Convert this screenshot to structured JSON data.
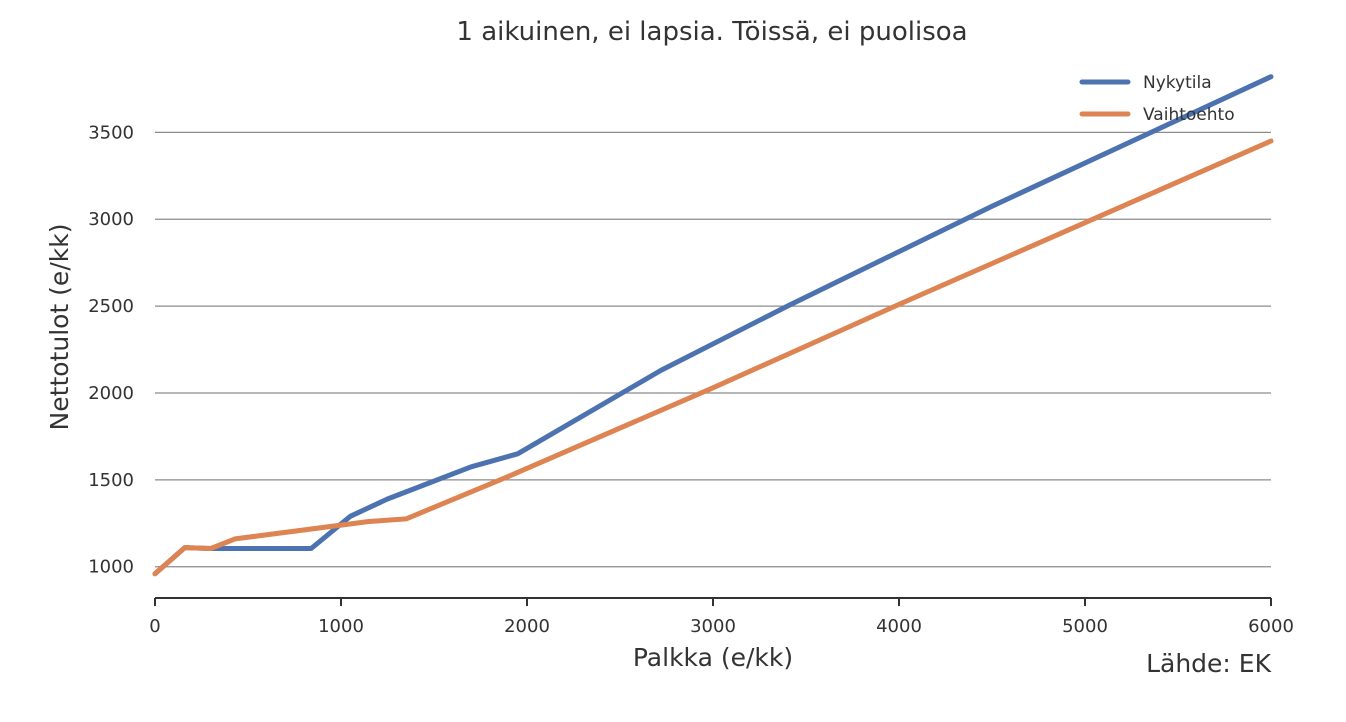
{
  "chart_data": {
    "type": "line",
    "title": "1 aikuinen, ei lapsia. Töissä, ei puolisoa",
    "xlabel": "Palkka (e/kk)",
    "ylabel": "Nettotulot (e/kk)",
    "source": "Lähde: EK",
    "xlim": [
      0,
      6000
    ],
    "ylim": [
      820,
      3830
    ],
    "x_ticks": [
      0,
      1000,
      2000,
      3000,
      4000,
      5000,
      6000
    ],
    "y_ticks": [
      1000,
      1500,
      2000,
      2500,
      3000,
      3500
    ],
    "grid": "horizontal",
    "legend_position": "top-right",
    "series": [
      {
        "name": "Nykytila",
        "color": "#4c72b0",
        "x": [
          0,
          160,
          300,
          840,
          1050,
          1250,
          1700,
          1950,
          2720,
          3400,
          4500,
          6000
        ],
        "y": [
          960,
          1110,
          1105,
          1105,
          1290,
          1390,
          1575,
          1650,
          2130,
          2500,
          3075,
          3820
        ]
      },
      {
        "name": "Vaihtoehto",
        "color": "#dd8452",
        "x": [
          0,
          160,
          300,
          430,
          1150,
          1350,
          1900,
          3000,
          4000,
          5000,
          6000
        ],
        "y": [
          960,
          1110,
          1105,
          1160,
          1260,
          1275,
          1520,
          2030,
          2510,
          2980,
          3450
        ]
      }
    ]
  }
}
